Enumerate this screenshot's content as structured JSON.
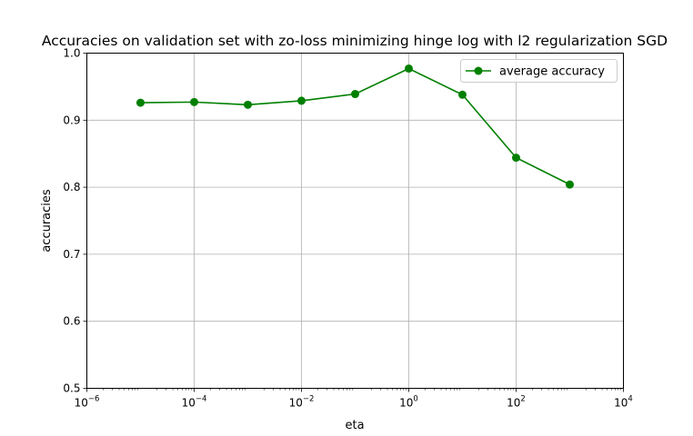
{
  "chart_data": {
    "type": "line",
    "title": "Accuracies on validation set with zo-loss minimizing hinge log with l2 regularization SGD",
    "xlabel": "eta",
    "ylabel": "accuracies",
    "x_scale": "log",
    "xlim": [
      1e-06,
      10000
    ],
    "ylim": [
      0.5,
      1.0
    ],
    "grid": true,
    "legend_position": "top-right",
    "x_ticks": [
      {
        "base": "10",
        "exp": "−6",
        "value": 1e-06
      },
      {
        "base": "10",
        "exp": "−4",
        "value": 0.0001
      },
      {
        "base": "10",
        "exp": "−2",
        "value": 0.01
      },
      {
        "base": "10",
        "exp": "0",
        "value": 1
      },
      {
        "base": "10",
        "exp": "2",
        "value": 100
      },
      {
        "base": "10",
        "exp": "4",
        "value": 10000
      }
    ],
    "y_ticks": [
      {
        "label": "0.5",
        "value": 0.5
      },
      {
        "label": "0.6",
        "value": 0.6
      },
      {
        "label": "0.7",
        "value": 0.7
      },
      {
        "label": "0.8",
        "value": 0.8
      },
      {
        "label": "0.9",
        "value": 0.9
      },
      {
        "label": "1.0",
        "value": 1.0
      }
    ],
    "series": [
      {
        "name": "average accuracy",
        "color": "#008000",
        "marker": "circle",
        "x": [
          1e-05,
          0.0001,
          0.001,
          0.01,
          0.1,
          1,
          10,
          100,
          1000
        ],
        "y": [
          0.926,
          0.927,
          0.923,
          0.929,
          0.939,
          0.977,
          0.938,
          0.844,
          0.804
        ]
      }
    ]
  }
}
